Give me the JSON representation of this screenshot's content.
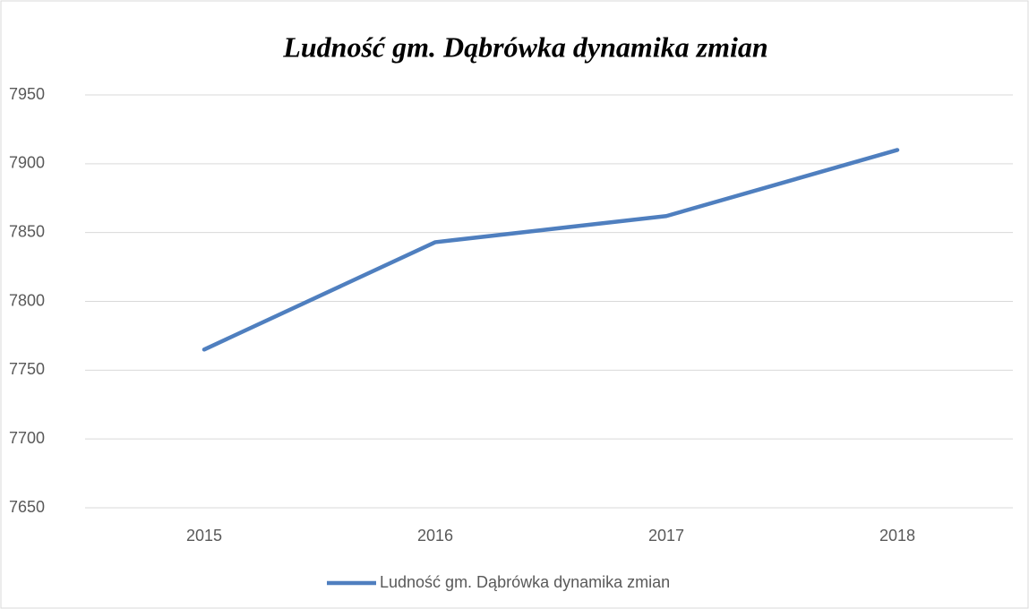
{
  "chart_data": {
    "type": "line",
    "title": "Ludność gm. Dąbrówka dynamika zmian",
    "categories": [
      "2015",
      "2016",
      "2017",
      "2018"
    ],
    "series": [
      {
        "name": "Ludność gm. Dąbrówka dynamika zmian",
        "color": "#4f7fbf",
        "values": [
          7765,
          7843,
          7862,
          7910
        ]
      }
    ],
    "ylim": [
      7650,
      7950
    ],
    "yticks": [
      7650,
      7700,
      7750,
      7800,
      7850,
      7900,
      7950
    ],
    "grid": true,
    "legend": "bottom"
  }
}
